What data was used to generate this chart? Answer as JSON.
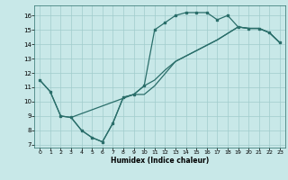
{
  "xlabel": "Humidex (Indice chaleur)",
  "bg_color": "#c8e8e8",
  "line_color": "#2a6e6a",
  "grid_color": "#a0cccc",
  "xlim": [
    -0.5,
    23.5
  ],
  "ylim": [
    6.8,
    16.7
  ],
  "xticks": [
    0,
    1,
    2,
    3,
    4,
    5,
    6,
    7,
    8,
    9,
    10,
    11,
    12,
    13,
    14,
    15,
    16,
    17,
    18,
    19,
    20,
    21,
    22,
    23
  ],
  "yticks": [
    7,
    8,
    9,
    10,
    11,
    12,
    13,
    14,
    15,
    16
  ],
  "line1_x": [
    0,
    1,
    2,
    3,
    4,
    5,
    6,
    7,
    8,
    9,
    10,
    11,
    12,
    13,
    14,
    15,
    16,
    17,
    18,
    19,
    20,
    21,
    22,
    23
  ],
  "line1_y": [
    11.5,
    10.7,
    9.0,
    8.9,
    8.0,
    7.5,
    7.2,
    8.5,
    10.3,
    10.5,
    11.1,
    15.0,
    15.5,
    16.0,
    16.2,
    16.2,
    16.2,
    15.7,
    16.0,
    15.2,
    15.1,
    15.1,
    14.8,
    14.1
  ],
  "line2_x": [
    0,
    1,
    2,
    3,
    9,
    10,
    11,
    12,
    13,
    17,
    19,
    20,
    21,
    22,
    23
  ],
  "line2_y": [
    11.5,
    10.7,
    9.0,
    8.9,
    10.5,
    11.1,
    11.5,
    12.2,
    12.8,
    14.3,
    15.2,
    15.1,
    15.1,
    14.8,
    14.1
  ],
  "line3_x": [
    3,
    4,
    5,
    6,
    7,
    8,
    9,
    10,
    11,
    13,
    17,
    19,
    20,
    21,
    22,
    23
  ],
  "line3_y": [
    8.9,
    8.0,
    7.5,
    7.2,
    8.5,
    10.3,
    10.5,
    10.5,
    11.1,
    12.8,
    14.3,
    15.2,
    15.1,
    15.1,
    14.8,
    14.1
  ]
}
